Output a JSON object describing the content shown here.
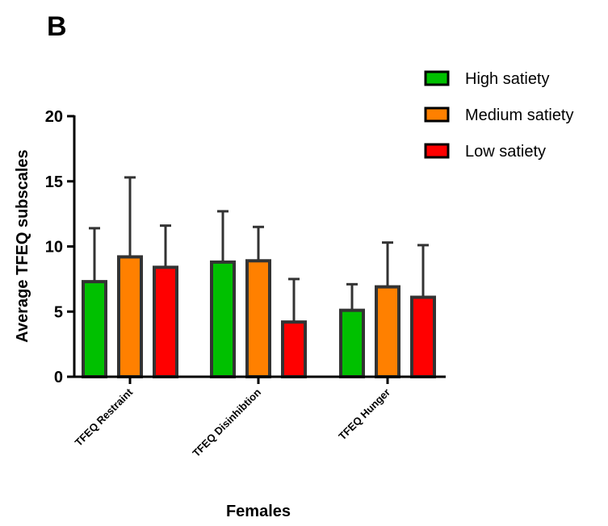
{
  "panel_label": "B",
  "chart_data": {
    "type": "bar",
    "title": "",
    "xlabel": "Females",
    "ylabel": "Average TFEQ subscales",
    "ylim": [
      0,
      20
    ],
    "yticks": [
      0,
      5,
      10,
      15,
      20
    ],
    "grid": false,
    "legend_position": "top-right",
    "categories": [
      "TFEQ Restraint",
      "TFEQ Disinhibtion",
      "TFEQ Hunger"
    ],
    "series": [
      {
        "name": "High satiety",
        "color": "#00c000",
        "values": [
          7.3,
          8.8,
          5.1
        ],
        "error": [
          4.1,
          3.9,
          2.0
        ]
      },
      {
        "name": "Medium satiety",
        "color": "#ff8000",
        "values": [
          9.2,
          8.9,
          6.9
        ],
        "error": [
          6.1,
          2.6,
          3.4
        ]
      },
      {
        "name": "Low satiety",
        "color": "#ff0000",
        "values": [
          8.4,
          4.2,
          6.1
        ],
        "error": [
          3.2,
          3.3,
          4.0
        ]
      }
    ]
  }
}
